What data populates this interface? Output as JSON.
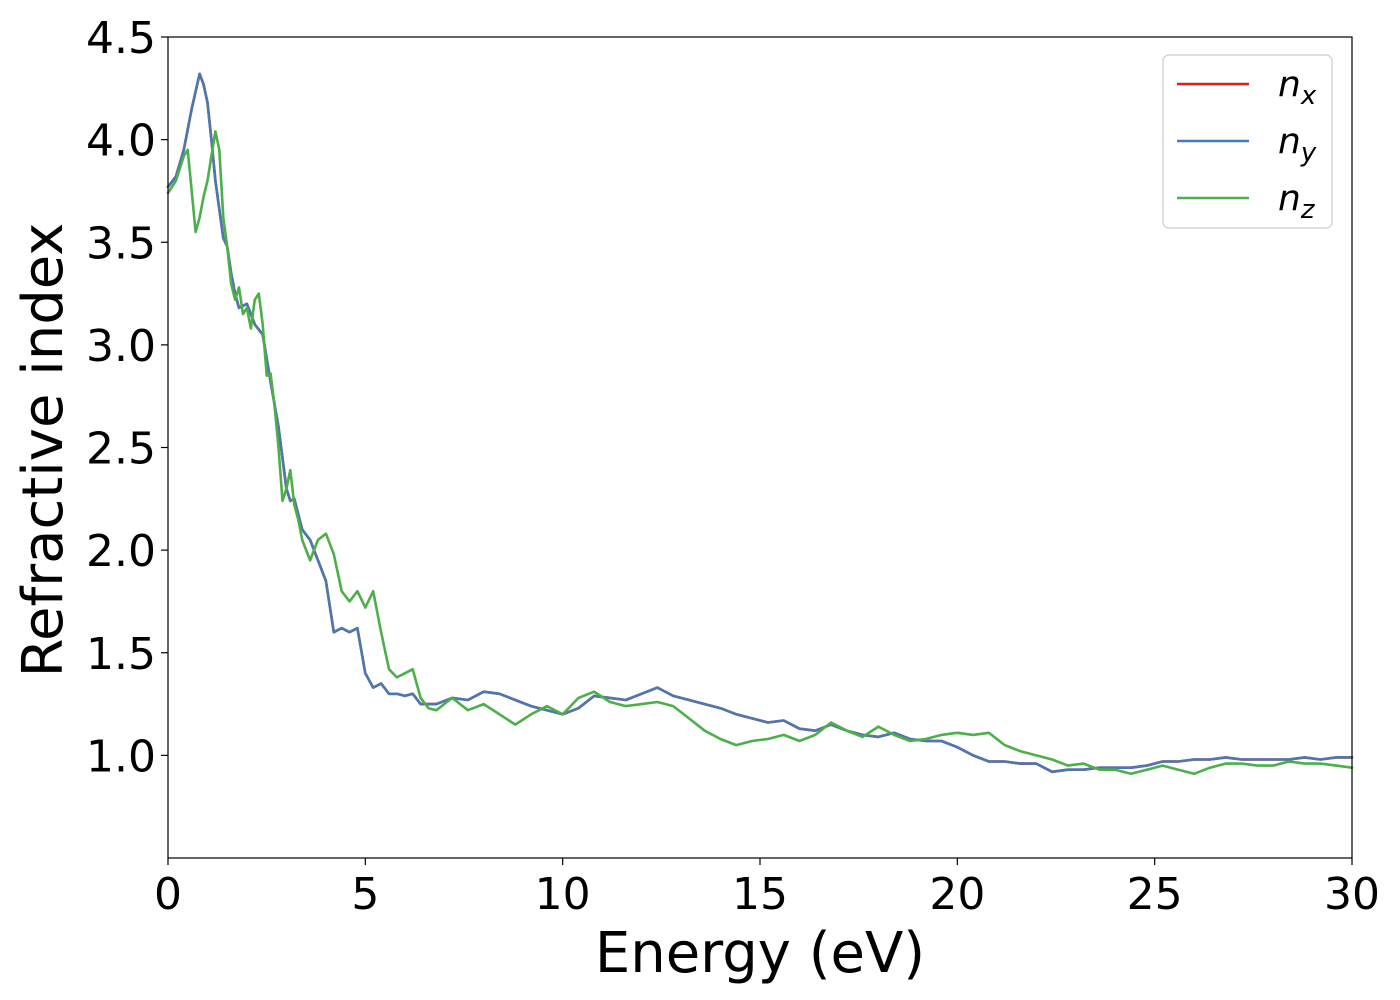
{
  "chart_data": {
    "type": "line",
    "title": "",
    "xlabel": "Energy (eV)",
    "ylabel": "Refractive index",
    "xlim": [
      0,
      30
    ],
    "ylim": [
      0.5,
      4.5
    ],
    "xticks": [
      0,
      5,
      10,
      15,
      20,
      25,
      30
    ],
    "yticks": [
      1.0,
      1.5,
      2.0,
      2.5,
      3.0,
      3.5,
      4.0,
      4.5
    ],
    "xtick_labels": [
      "0",
      "5",
      "10",
      "15",
      "20",
      "25",
      "30"
    ],
    "ytick_labels": [
      "1.0",
      "1.5",
      "2.0",
      "2.5",
      "3.0",
      "3.5",
      "4.0",
      "4.5"
    ],
    "grid": false,
    "legend_position": "top-right",
    "series": [
      {
        "name": "n",
        "subscript": "x",
        "color": "#e41a1c",
        "x": [
          0,
          0.2,
          0.4,
          0.6,
          0.8,
          0.9,
          1.0,
          1.1,
          1.2,
          1.4,
          1.5,
          1.6,
          1.7,
          1.8,
          2.0,
          2.2,
          2.4,
          2.6,
          2.8,
          3.0,
          3.1,
          3.2,
          3.4,
          3.6,
          3.8,
          4.0,
          4.2,
          4.4,
          4.6,
          4.8,
          5.0,
          5.2,
          5.4,
          5.6,
          5.8,
          6.0,
          6.2,
          6.4,
          6.8,
          7.2,
          7.6,
          8.0,
          8.4,
          8.8,
          9.2,
          9.6,
          10.0,
          10.4,
          10.8,
          11.2,
          11.6,
          12.0,
          12.4,
          12.8,
          13.2,
          13.6,
          14.0,
          14.4,
          14.8,
          15.2,
          15.6,
          16.0,
          16.4,
          16.8,
          17.2,
          17.6,
          18.0,
          18.4,
          18.8,
          19.2,
          19.6,
          20.0,
          20.4,
          20.8,
          21.2,
          21.6,
          22.0,
          22.4,
          22.8,
          23.2,
          23.6,
          24.0,
          24.4,
          24.8,
          25.2,
          25.6,
          26.0,
          26.4,
          26.8,
          27.2,
          27.6,
          28.0,
          28.4,
          28.8,
          29.2,
          29.6,
          30.0
        ],
        "values": [
          3.77,
          3.82,
          3.95,
          4.15,
          4.32,
          4.27,
          4.18,
          4.0,
          3.8,
          3.52,
          3.48,
          3.35,
          3.25,
          3.18,
          3.2,
          3.1,
          3.05,
          2.82,
          2.6,
          2.3,
          2.24,
          2.25,
          2.1,
          2.05,
          1.95,
          1.85,
          1.6,
          1.62,
          1.6,
          1.62,
          1.4,
          1.33,
          1.35,
          1.3,
          1.3,
          1.29,
          1.3,
          1.25,
          1.25,
          1.28,
          1.27,
          1.31,
          1.3,
          1.27,
          1.24,
          1.22,
          1.2,
          1.23,
          1.29,
          1.28,
          1.27,
          1.3,
          1.33,
          1.29,
          1.27,
          1.25,
          1.23,
          1.2,
          1.18,
          1.16,
          1.17,
          1.13,
          1.12,
          1.15,
          1.12,
          1.1,
          1.09,
          1.11,
          1.08,
          1.07,
          1.07,
          1.04,
          1.0,
          0.97,
          0.97,
          0.96,
          0.96,
          0.92,
          0.93,
          0.93,
          0.94,
          0.94,
          0.94,
          0.95,
          0.97,
          0.97,
          0.98,
          0.98,
          0.99,
          0.98,
          0.98,
          0.98,
          0.98,
          0.99,
          0.98,
          0.99,
          0.99
        ]
      },
      {
        "name": "n",
        "subscript": "y",
        "color": "#4a78b0",
        "x": [
          0,
          0.2,
          0.4,
          0.6,
          0.8,
          0.9,
          1.0,
          1.1,
          1.2,
          1.4,
          1.5,
          1.6,
          1.7,
          1.8,
          2.0,
          2.2,
          2.4,
          2.6,
          2.8,
          3.0,
          3.1,
          3.2,
          3.4,
          3.6,
          3.8,
          4.0,
          4.2,
          4.4,
          4.6,
          4.8,
          5.0,
          5.2,
          5.4,
          5.6,
          5.8,
          6.0,
          6.2,
          6.4,
          6.8,
          7.2,
          7.6,
          8.0,
          8.4,
          8.8,
          9.2,
          9.6,
          10.0,
          10.4,
          10.8,
          11.2,
          11.6,
          12.0,
          12.4,
          12.8,
          13.2,
          13.6,
          14.0,
          14.4,
          14.8,
          15.2,
          15.6,
          16.0,
          16.4,
          16.8,
          17.2,
          17.6,
          18.0,
          18.4,
          18.8,
          19.2,
          19.6,
          20.0,
          20.4,
          20.8,
          21.2,
          21.6,
          22.0,
          22.4,
          22.8,
          23.2,
          23.6,
          24.0,
          24.4,
          24.8,
          25.2,
          25.6,
          26.0,
          26.4,
          26.8,
          27.2,
          27.6,
          28.0,
          28.4,
          28.8,
          29.2,
          29.6,
          30.0
        ],
        "values": [
          3.77,
          3.82,
          3.95,
          4.15,
          4.32,
          4.27,
          4.18,
          4.0,
          3.8,
          3.52,
          3.48,
          3.35,
          3.25,
          3.18,
          3.2,
          3.1,
          3.05,
          2.82,
          2.6,
          2.3,
          2.24,
          2.25,
          2.1,
          2.05,
          1.95,
          1.85,
          1.6,
          1.62,
          1.6,
          1.62,
          1.4,
          1.33,
          1.35,
          1.3,
          1.3,
          1.29,
          1.3,
          1.25,
          1.25,
          1.28,
          1.27,
          1.31,
          1.3,
          1.27,
          1.24,
          1.22,
          1.2,
          1.23,
          1.29,
          1.28,
          1.27,
          1.3,
          1.33,
          1.29,
          1.27,
          1.25,
          1.23,
          1.2,
          1.18,
          1.16,
          1.17,
          1.13,
          1.12,
          1.15,
          1.12,
          1.1,
          1.09,
          1.11,
          1.08,
          1.07,
          1.07,
          1.04,
          1.0,
          0.97,
          0.97,
          0.96,
          0.96,
          0.92,
          0.93,
          0.93,
          0.94,
          0.94,
          0.94,
          0.95,
          0.97,
          0.97,
          0.98,
          0.98,
          0.99,
          0.98,
          0.98,
          0.98,
          0.98,
          0.99,
          0.98,
          0.99,
          0.99
        ]
      },
      {
        "name": "n",
        "subscript": "z",
        "color": "#4daf4a",
        "x": [
          0,
          0.2,
          0.4,
          0.5,
          0.6,
          0.7,
          0.8,
          0.9,
          1.0,
          1.1,
          1.2,
          1.3,
          1.4,
          1.5,
          1.6,
          1.7,
          1.8,
          1.9,
          2.0,
          2.1,
          2.2,
          2.3,
          2.4,
          2.5,
          2.6,
          2.7,
          2.8,
          2.9,
          3.0,
          3.1,
          3.2,
          3.3,
          3.4,
          3.6,
          3.8,
          4.0,
          4.2,
          4.4,
          4.6,
          4.8,
          5.0,
          5.2,
          5.4,
          5.6,
          5.8,
          6.0,
          6.2,
          6.4,
          6.6,
          6.8,
          7.2,
          7.6,
          8.0,
          8.4,
          8.8,
          9.2,
          9.6,
          10.0,
          10.4,
          10.8,
          11.2,
          11.6,
          12.0,
          12.4,
          12.8,
          13.2,
          13.6,
          14.0,
          14.4,
          14.8,
          15.2,
          15.6,
          16.0,
          16.4,
          16.8,
          17.2,
          17.6,
          18.0,
          18.4,
          18.8,
          19.2,
          19.6,
          20.0,
          20.4,
          20.8,
          21.2,
          21.6,
          22.0,
          22.4,
          22.8,
          23.2,
          23.6,
          24.0,
          24.4,
          24.8,
          25.2,
          25.6,
          26.0,
          26.4,
          26.8,
          27.2,
          27.6,
          28.0,
          28.4,
          28.8,
          29.2,
          29.6,
          30.0
        ],
        "values": [
          3.74,
          3.8,
          3.92,
          3.95,
          3.75,
          3.55,
          3.62,
          3.72,
          3.8,
          3.92,
          4.04,
          3.95,
          3.62,
          3.48,
          3.3,
          3.22,
          3.28,
          3.15,
          3.18,
          3.08,
          3.22,
          3.25,
          3.1,
          2.85,
          2.86,
          2.7,
          2.5,
          2.24,
          2.3,
          2.39,
          2.22,
          2.15,
          2.05,
          1.95,
          2.05,
          2.08,
          1.98,
          1.8,
          1.75,
          1.8,
          1.72,
          1.8,
          1.6,
          1.42,
          1.38,
          1.4,
          1.42,
          1.28,
          1.23,
          1.22,
          1.28,
          1.22,
          1.25,
          1.2,
          1.15,
          1.2,
          1.24,
          1.2,
          1.28,
          1.31,
          1.26,
          1.24,
          1.25,
          1.26,
          1.24,
          1.18,
          1.12,
          1.08,
          1.05,
          1.07,
          1.08,
          1.1,
          1.07,
          1.1,
          1.16,
          1.12,
          1.09,
          1.14,
          1.1,
          1.07,
          1.08,
          1.1,
          1.11,
          1.1,
          1.11,
          1.05,
          1.02,
          1.0,
          0.98,
          0.95,
          0.96,
          0.93,
          0.93,
          0.91,
          0.93,
          0.95,
          0.93,
          0.91,
          0.94,
          0.96,
          0.96,
          0.95,
          0.95,
          0.97,
          0.96,
          0.96,
          0.95,
          0.94
        ]
      }
    ]
  }
}
